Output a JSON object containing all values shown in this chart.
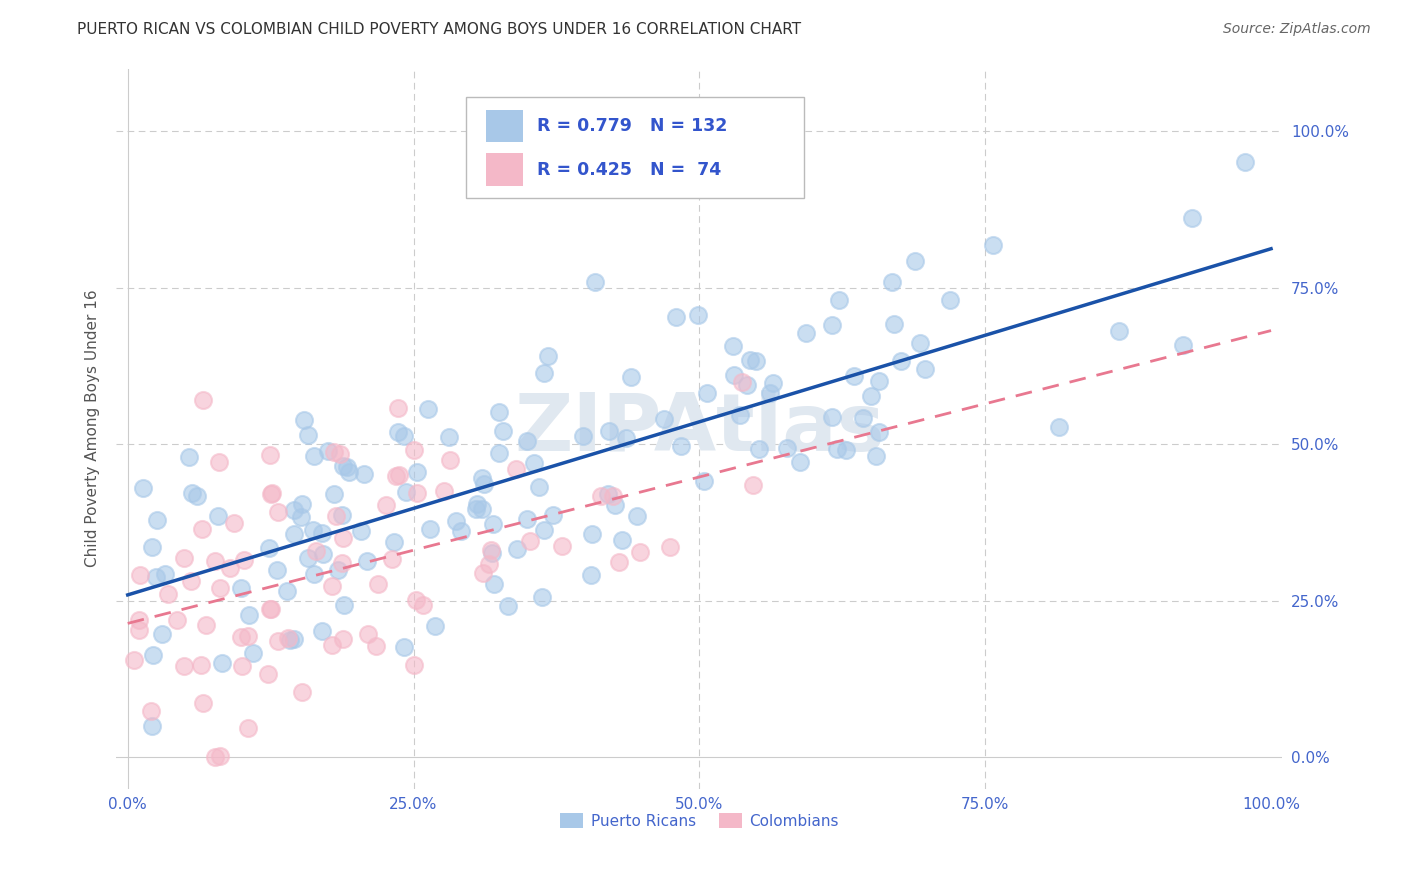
{
  "title": "PUERTO RICAN VS COLOMBIAN CHILD POVERTY AMONG BOYS UNDER 16 CORRELATION CHART",
  "source": "Source: ZipAtlas.com",
  "ylabel": "Child Poverty Among Boys Under 16",
  "pr_R": 0.779,
  "pr_N": 132,
  "col_R": 0.425,
  "col_N": 74,
  "pr_color": "#a8c8e8",
  "pr_edge_color": "#a8c8e8",
  "col_color": "#f4b8c8",
  "col_edge_color": "#f4b8c8",
  "pr_line_color": "#1a52a8",
  "col_line_color": "#e87890",
  "background": "#ffffff",
  "grid_color": "#cccccc",
  "legend_label_pr": "Puerto Ricans",
  "legend_label_col": "Colombians",
  "title_color": "#333333",
  "source_color": "#666666",
  "axis_label_color": "#555555",
  "tick_label_color": "#4466cc",
  "stat_color": "#3355cc",
  "watermark_color": "#e0e8f0",
  "x_ticks": [
    0.0,
    0.25,
    0.5,
    0.75,
    1.0
  ],
  "x_labels": [
    "0.0%",
    "25.0%",
    "50.0%",
    "75.0%",
    "100.0%"
  ],
  "y_ticks": [
    0.0,
    0.25,
    0.5,
    0.75,
    1.0
  ],
  "y_labels": [
    "0.0%",
    "25.0%",
    "50.0%",
    "75.0%",
    "100.0%"
  ]
}
